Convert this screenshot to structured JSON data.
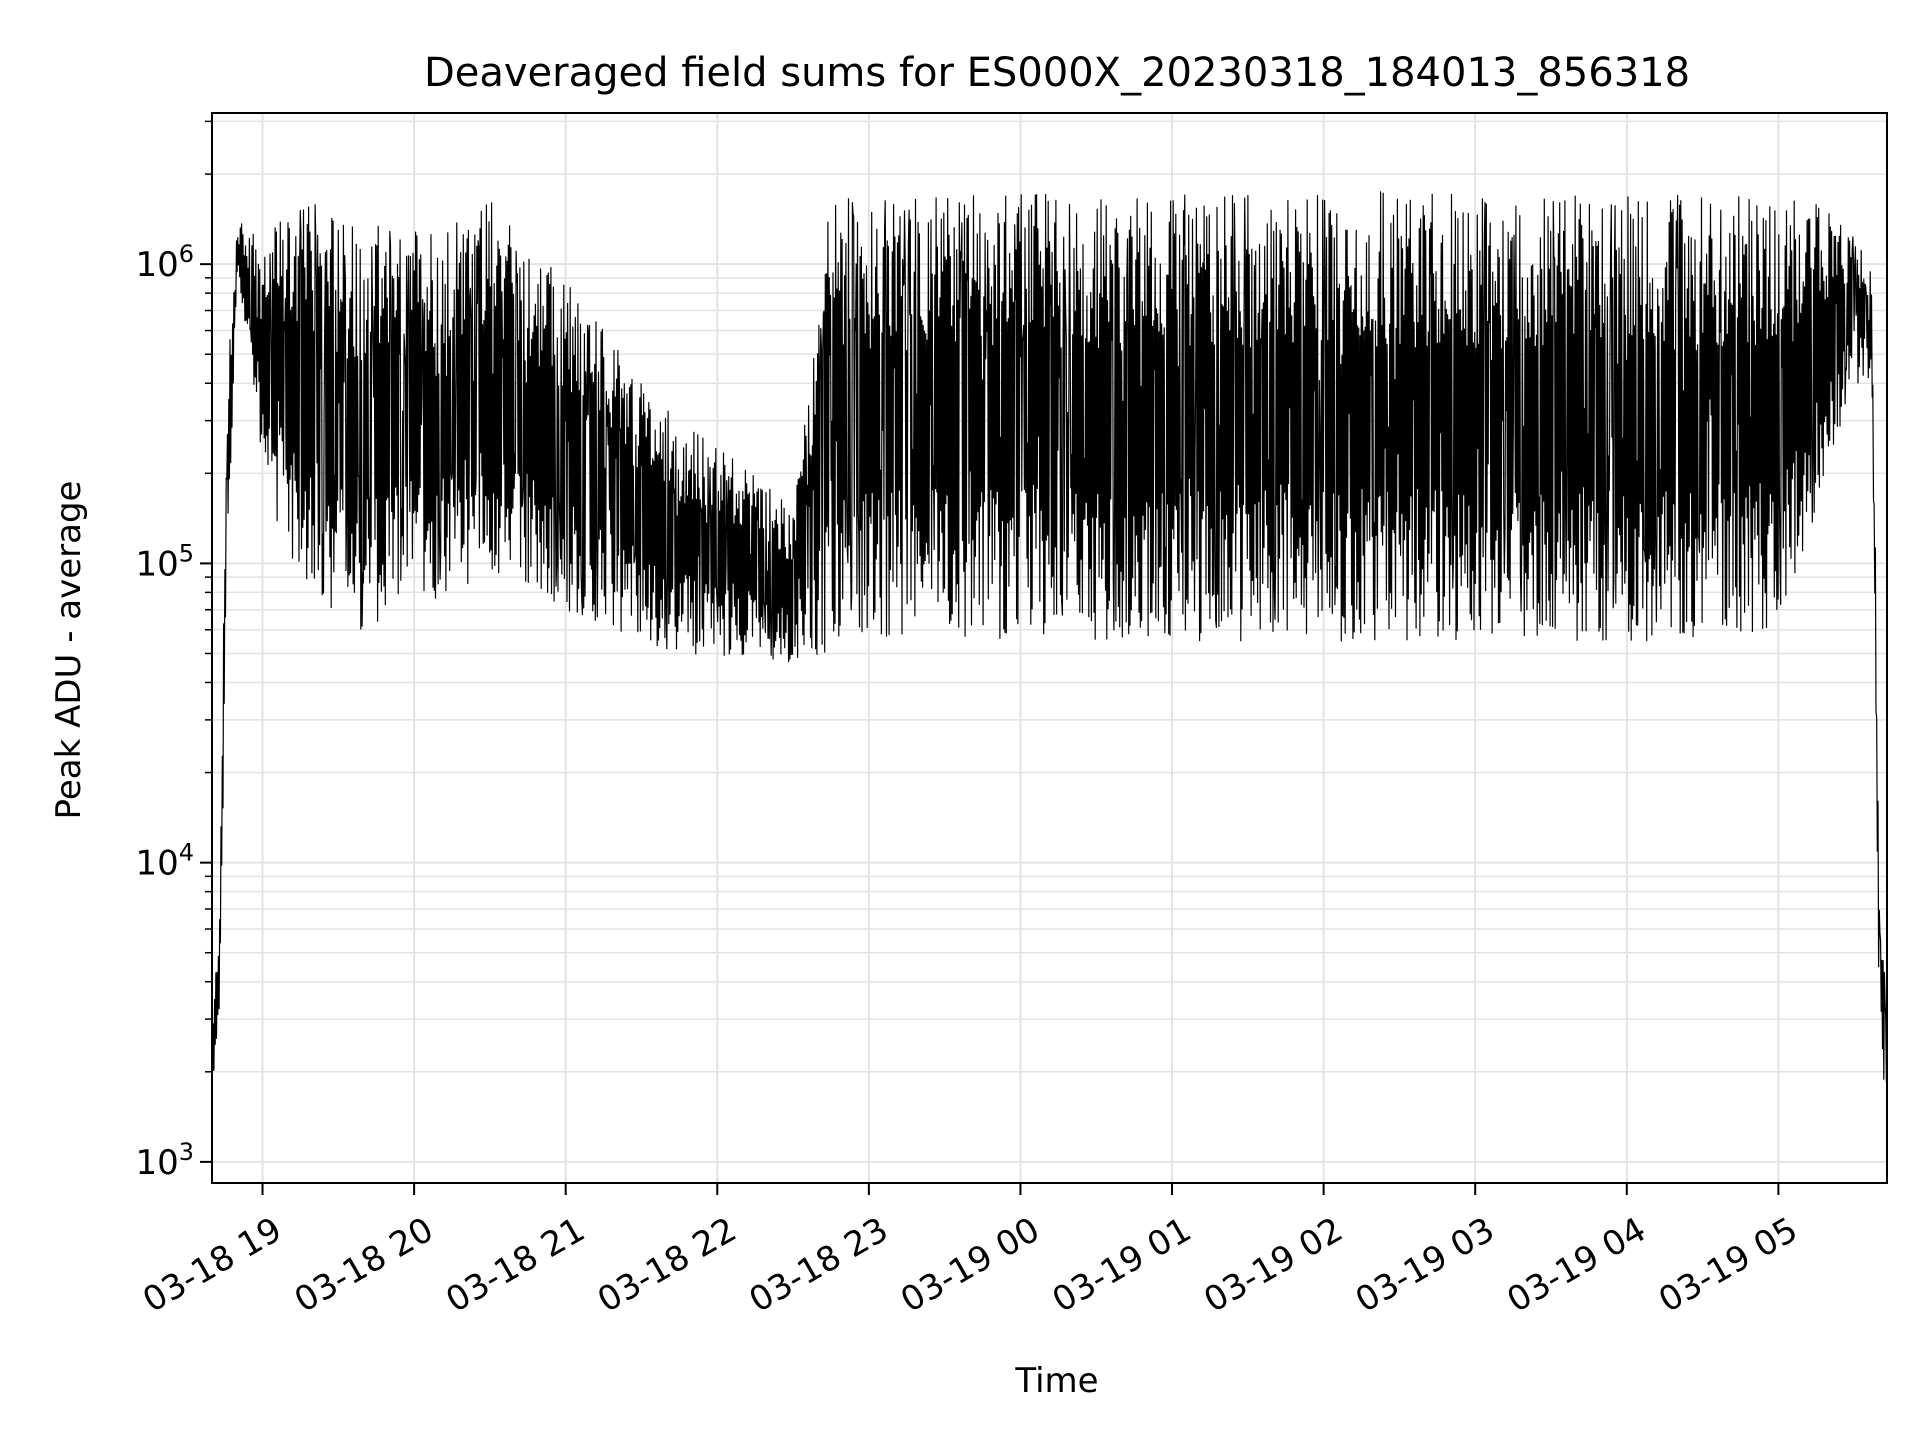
{
  "chart_data": {
    "type": "line",
    "title": "Deaveraged field sums for ES000X_20230318_184013_856318",
    "xlabel": "Time",
    "ylabel": "Peak ADU - average",
    "yscale": "log",
    "ylim": [
      850,
      3200000
    ],
    "xlim": [
      "03-18 18:40",
      "03-19 05:43"
    ],
    "grid": true,
    "line_color": "#000000",
    "x_ticks": [
      "03-18 19",
      "03-18 20",
      "03-18 21",
      "03-18 22",
      "03-18 23",
      "03-19 00",
      "03-19 01",
      "03-19 02",
      "03-19 03",
      "03-19 04",
      "03-19 05"
    ],
    "y_ticks": [
      {
        "value": 1000,
        "base": "10",
        "exp": "3"
      },
      {
        "value": 10000,
        "base": "10",
        "exp": "4"
      },
      {
        "value": 100000,
        "base": "10",
        "exp": "5"
      },
      {
        "value": 1000000,
        "base": "10",
        "exp": "6"
      }
    ],
    "series": [
      {
        "x": [
          "03-18 18:40",
          "03-18 18:43",
          "03-18 18:46",
          "03-18 18:50",
          "03-18 18:55",
          "03-18 19:00",
          "03-18 19:10",
          "03-18 19:20",
          "03-18 19:30",
          "03-18 19:40",
          "03-18 19:50",
          "03-18 20:00",
          "03-18 20:15",
          "03-18 20:30",
          "03-18 20:45",
          "03-18 21:00",
          "03-18 21:15",
          "03-18 21:30",
          "03-18 21:45",
          "03-18 22:00",
          "03-18 22:15",
          "03-18 22:30",
          "03-18 22:45",
          "03-18 23:00",
          "03-18 23:30",
          "03-19 00:00",
          "03-19 00:30",
          "03-19 01:00",
          "03-19 01:30",
          "03-19 02:00",
          "03-19 02:30",
          "03-19 03:00",
          "03-19 03:30",
          "03-19 04:00",
          "03-19 04:30",
          "03-19 05:00",
          "03-19 05:15",
          "03-19 05:30",
          "03-19 05:37",
          "03-19 05:40",
          "03-19 05:43"
        ],
        "min": [
          1800,
          2500,
          100000,
          900000,
          500000,
          200000,
          100000,
          80000,
          60000,
          60000,
          65000,
          70000,
          80000,
          90000,
          80000,
          70000,
          60000,
          55000,
          50000,
          48000,
          50000,
          45000,
          50000,
          55000,
          55000,
          55000,
          55000,
          55000,
          55000,
          55000,
          55000,
          55000,
          55000,
          55000,
          55000,
          60000,
          150000,
          400000,
          400000,
          2500,
          1500
        ],
        "max": [
          2500,
          8000,
          400000,
          1400000,
          1300000,
          1300000,
          1500000,
          1600000,
          1500000,
          1400000,
          1300000,
          1350000,
          1500000,
          1700000,
          1200000,
          900000,
          600000,
          400000,
          300000,
          250000,
          200000,
          150000,
          1700000,
          1700000,
          1700000,
          1800000,
          1700000,
          1700000,
          1750000,
          1800000,
          1750000,
          1700000,
          1700000,
          1700000,
          1700000,
          1700000,
          1600000,
          1300000,
          1000000,
          10000,
          3000
        ]
      }
    ]
  }
}
